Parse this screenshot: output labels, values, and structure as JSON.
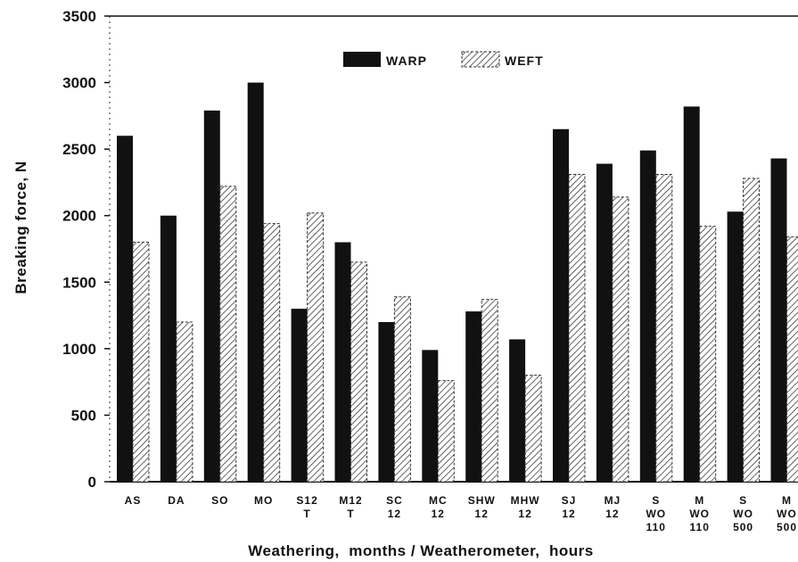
{
  "chart_data": {
    "type": "bar",
    "title": "",
    "xlabel": "Weathering,  months / Weatherometer,  hours",
    "ylabel": "Breaking force,  N",
    "ylim": [
      0,
      3500
    ],
    "yticks": [
      0,
      500,
      1000,
      1500,
      2000,
      2500,
      3000,
      3500
    ],
    "legend_position": "top-center",
    "grid": false,
    "categories": [
      [
        "AS"
      ],
      [
        "DA"
      ],
      [
        "SO"
      ],
      [
        "MO"
      ],
      [
        "S12",
        "T"
      ],
      [
        "M12",
        "T"
      ],
      [
        "SC",
        "12"
      ],
      [
        "MC",
        "12"
      ],
      [
        "SHW",
        "12"
      ],
      [
        "MHW",
        "12"
      ],
      [
        "SJ",
        "12"
      ],
      [
        "MJ",
        "12"
      ],
      [
        "S",
        "WO",
        "110"
      ],
      [
        "M",
        "WO",
        "110"
      ],
      [
        "S",
        "WO",
        "500"
      ],
      [
        "M",
        "WO",
        "500"
      ]
    ],
    "series": [
      {
        "name": "WARP",
        "color": "#111111",
        "pattern": "solid",
        "values": [
          2600,
          2000,
          2790,
          3000,
          1300,
          1800,
          1200,
          990,
          1280,
          1070,
          2650,
          2390,
          2490,
          2820,
          2030,
          2430
        ]
      },
      {
        "name": "WEFT",
        "color": "#ffffff",
        "pattern": "hatched",
        "values": [
          1800,
          1200,
          2220,
          1940,
          2020,
          1650,
          1390,
          760,
          1370,
          800,
          2310,
          2140,
          2310,
          1920,
          2280,
          1840
        ]
      }
    ]
  }
}
